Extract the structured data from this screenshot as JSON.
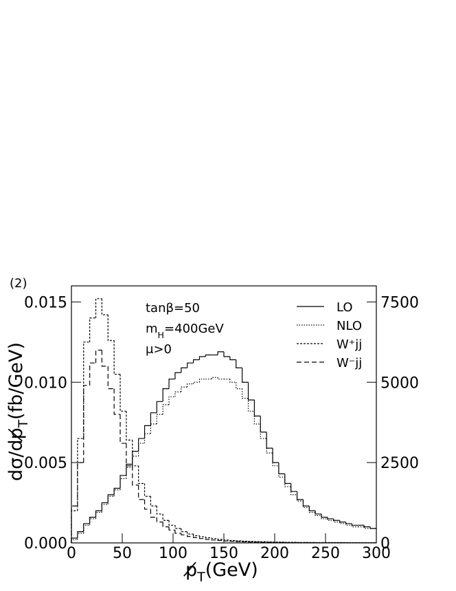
{
  "chart_data": {
    "type": "histogram",
    "panel_label": "(2)",
    "x_label": {
      "main": "p̸",
      "sub": "T",
      "unit": "(GeV)"
    },
    "y_label": {
      "main": "dσ/dp̸",
      "sub": "T",
      "unit": "(fb/GeV)"
    },
    "annotations": [
      {
        "main": "tanβ=50"
      },
      {
        "main": "m",
        "sub": "H",
        "unit": "=400GeV"
      },
      {
        "main": "μ>0"
      }
    ],
    "bins": [
      0,
      6,
      12,
      18,
      24,
      30,
      36,
      42,
      48,
      54,
      60,
      66,
      72,
      78,
      84,
      90,
      96,
      102,
      108,
      114,
      120,
      126,
      132,
      138,
      144,
      150,
      156,
      162,
      168,
      174,
      180,
      186,
      192,
      198,
      204,
      210,
      216,
      222,
      228,
      234,
      240,
      246,
      252,
      258,
      264,
      270,
      276,
      282,
      288,
      294,
      300
    ],
    "series": [
      {
        "name": "LO",
        "color": "#000000",
        "dash": "none",
        "values": [
          0.0003,
          0.0007,
          0.0012,
          0.0016,
          0.002,
          0.0025,
          0.003,
          0.0034,
          0.0042,
          0.0049,
          0.0057,
          0.0065,
          0.0073,
          0.0081,
          0.0088,
          0.0096,
          0.0102,
          0.0106,
          0.0109,
          0.0112,
          0.0114,
          0.0116,
          0.0117,
          0.0117,
          0.0119,
          0.0116,
          0.0114,
          0.0109,
          0.01,
          0.0089,
          0.0079,
          0.0069,
          0.0059,
          0.005,
          0.0043,
          0.0037,
          0.0032,
          0.0027,
          0.0023,
          0.002,
          0.0018,
          0.0016,
          0.0015,
          0.0014,
          0.0013,
          0.0012,
          0.0011,
          0.0011,
          0.001,
          0.0009
        ]
      },
      {
        "name": "NLO",
        "color": "#000000",
        "dash": "1.5,2",
        "values": [
          0.0002,
          0.0006,
          0.0011,
          0.0015,
          0.0019,
          0.0024,
          0.0029,
          0.0033,
          0.004,
          0.0047,
          0.0054,
          0.0062,
          0.0068,
          0.0074,
          0.008,
          0.0086,
          0.0091,
          0.0094,
          0.0097,
          0.0099,
          0.01,
          0.0102,
          0.0102,
          0.0103,
          0.0102,
          0.0102,
          0.01,
          0.0096,
          0.009,
          0.0082,
          0.0074,
          0.0065,
          0.0056,
          0.0048,
          0.0041,
          0.0035,
          0.003,
          0.0026,
          0.0022,
          0.0019,
          0.0017,
          0.0015,
          0.0014,
          0.0013,
          0.0012,
          0.0011,
          0.001,
          0.001,
          0.0009,
          0.0009
        ]
      },
      {
        "name": "W⁺jj",
        "color": "#000000",
        "dash": "3,2",
        "values": [
          0.002,
          0.0065,
          0.0125,
          0.014,
          0.0152,
          0.0142,
          0.0126,
          0.0105,
          0.0082,
          0.0064,
          0.0048,
          0.0037,
          0.0029,
          0.0023,
          0.0018,
          0.0014,
          0.0011,
          0.0009,
          0.0007,
          0.00055,
          0.00045,
          0.00038,
          0.00032,
          0.00027,
          0.00022,
          0.00018,
          0.00015,
          0.00013,
          0.00011,
          9e-05,
          8e-05,
          7e-05,
          6e-05,
          5e-05,
          5e-05,
          4e-05,
          4e-05,
          3e-05,
          3e-05,
          3e-05,
          2e-05,
          2e-05,
          2e-05,
          2e-05,
          2e-05,
          1e-05,
          1e-05,
          1e-05,
          1e-05,
          1e-05
        ]
      },
      {
        "name": "W⁻jj",
        "color": "#000000",
        "dash": "7,4",
        "values": [
          0.0023,
          0.005,
          0.0098,
          0.0112,
          0.012,
          0.011,
          0.0096,
          0.008,
          0.0062,
          0.0048,
          0.0036,
          0.0027,
          0.0021,
          0.0016,
          0.0013,
          0.001,
          0.0008,
          0.0006,
          0.0005,
          0.0004,
          0.00033,
          0.00027,
          0.00022,
          0.00018,
          0.00015,
          0.00012,
          0.0001,
          8e-05,
          7e-05,
          6e-05,
          5e-05,
          4e-05,
          4e-05,
          3e-05,
          3e-05,
          2e-05,
          2e-05,
          2e-05,
          2e-05,
          1e-05,
          1e-05,
          1e-05,
          1e-05,
          1e-05,
          1e-05,
          1e-05,
          5e-06,
          5e-06,
          5e-06,
          5e-06
        ]
      }
    ],
    "xlim": [
      0,
      300
    ],
    "xticks": [
      0,
      50,
      100,
      150,
      200,
      250,
      300
    ],
    "ylim": [
      0,
      0.016
    ],
    "yticks": [
      {
        "value": 0,
        "label": "0.000"
      },
      {
        "value": 0.005,
        "label": "0.005"
      },
      {
        "value": 0.01,
        "label": "0.010"
      },
      {
        "value": 0.015,
        "label": "0.015"
      }
    ],
    "y2lim": [
      0,
      8000
    ],
    "y2ticks": [
      0,
      2500,
      5000,
      7500
    ],
    "grid": false
  }
}
